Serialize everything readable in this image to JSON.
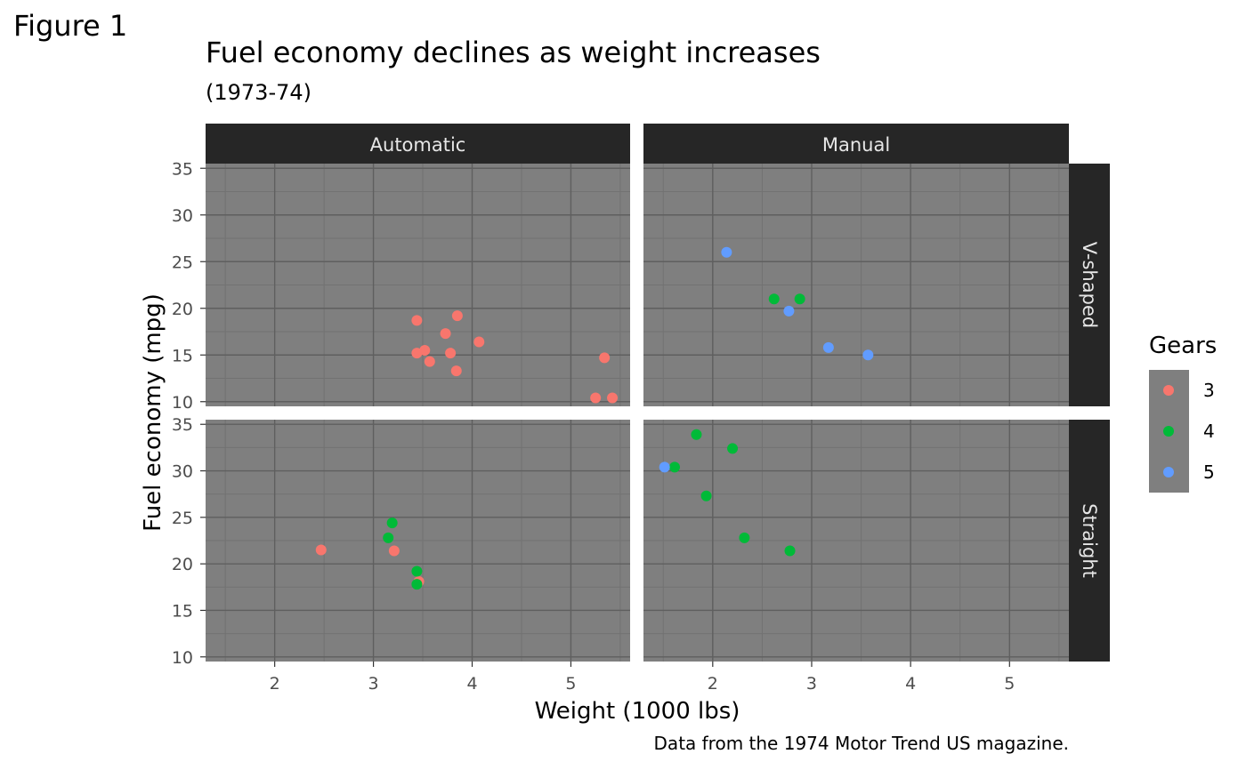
{
  "figure_label": "Figure 1",
  "caption": "Data from the 1974 Motor Trend US magazine.",
  "colors": {
    "panel_bg": "#7f7f7f",
    "grid_major": "#5f5f5f",
    "grid_minor": "#727272",
    "strip_bg": "#262626",
    "strip_text": "#e6e6e6",
    "tick_text": "#4d4d4d",
    "gear_3": "#f8766d",
    "gear_4": "#00ba38",
    "gear_5": "#619cff"
  },
  "chart_data": {
    "type": "scatter",
    "title": "Fuel economy declines as weight increases",
    "subtitle": "(1973-74)",
    "xlabel": "Weight (1000 lbs)",
    "ylabel": "Fuel economy (mpg)",
    "xlim": [
      1.3,
      5.6
    ],
    "ylim": [
      9.5,
      35.5
    ],
    "x_ticks": [
      "2",
      "3",
      "4",
      "5"
    ],
    "x_tick_values": [
      2,
      3,
      4,
      5
    ],
    "y_ticks": [
      "10",
      "15",
      "20",
      "25",
      "30",
      "35"
    ],
    "y_tick_values": [
      10,
      15,
      20,
      25,
      30,
      35
    ],
    "grid": true,
    "facet_columns": [
      "Automatic",
      "Manual"
    ],
    "facet_rows": [
      "V-shaped",
      "Straight"
    ],
    "legend": {
      "title": "Gears",
      "position": "right",
      "entries": [
        {
          "label": "3",
          "color": "#f8766d"
        },
        {
          "label": "4",
          "color": "#00ba38"
        },
        {
          "label": "5",
          "color": "#619cff"
        }
      ]
    },
    "points": [
      {
        "column": "Automatic",
        "row": "V-shaped",
        "gear": "3",
        "x": 3.44,
        "y": 18.7
      },
      {
        "column": "Automatic",
        "row": "V-shaped",
        "gear": "3",
        "x": 3.57,
        "y": 14.3
      },
      {
        "column": "Automatic",
        "row": "V-shaped",
        "gear": "3",
        "x": 4.07,
        "y": 16.4
      },
      {
        "column": "Automatic",
        "row": "V-shaped",
        "gear": "3",
        "x": 3.73,
        "y": 17.3
      },
      {
        "column": "Automatic",
        "row": "V-shaped",
        "gear": "3",
        "x": 3.78,
        "y": 15.2
      },
      {
        "column": "Automatic",
        "row": "V-shaped",
        "gear": "3",
        "x": 5.25,
        "y": 10.4
      },
      {
        "column": "Automatic",
        "row": "V-shaped",
        "gear": "3",
        "x": 5.42,
        "y": 10.4
      },
      {
        "column": "Automatic",
        "row": "V-shaped",
        "gear": "3",
        "x": 5.34,
        "y": 14.7
      },
      {
        "column": "Automatic",
        "row": "V-shaped",
        "gear": "3",
        "x": 3.52,
        "y": 15.5
      },
      {
        "column": "Automatic",
        "row": "V-shaped",
        "gear": "3",
        "x": 3.44,
        "y": 15.2
      },
      {
        "column": "Automatic",
        "row": "V-shaped",
        "gear": "3",
        "x": 3.84,
        "y": 13.3
      },
      {
        "column": "Automatic",
        "row": "V-shaped",
        "gear": "3",
        "x": 3.85,
        "y": 19.2
      },
      {
        "column": "Manual",
        "row": "V-shaped",
        "gear": "4",
        "x": 2.62,
        "y": 21.0
      },
      {
        "column": "Manual",
        "row": "V-shaped",
        "gear": "4",
        "x": 2.88,
        "y": 21.0
      },
      {
        "column": "Manual",
        "row": "V-shaped",
        "gear": "5",
        "x": 2.14,
        "y": 26.0
      },
      {
        "column": "Manual",
        "row": "V-shaped",
        "gear": "5",
        "x": 3.17,
        "y": 15.8
      },
      {
        "column": "Manual",
        "row": "V-shaped",
        "gear": "5",
        "x": 2.77,
        "y": 19.7
      },
      {
        "column": "Manual",
        "row": "V-shaped",
        "gear": "5",
        "x": 3.57,
        "y": 15.0
      },
      {
        "column": "Automatic",
        "row": "Straight",
        "gear": "3",
        "x": 3.21,
        "y": 21.4
      },
      {
        "column": "Automatic",
        "row": "Straight",
        "gear": "3",
        "x": 3.46,
        "y": 18.1
      },
      {
        "column": "Automatic",
        "row": "Straight",
        "gear": "3",
        "x": 2.47,
        "y": 21.5
      },
      {
        "column": "Automatic",
        "row": "Straight",
        "gear": "4",
        "x": 3.19,
        "y": 24.4
      },
      {
        "column": "Automatic",
        "row": "Straight",
        "gear": "4",
        "x": 3.15,
        "y": 22.8
      },
      {
        "column": "Automatic",
        "row": "Straight",
        "gear": "4",
        "x": 3.44,
        "y": 19.2
      },
      {
        "column": "Automatic",
        "row": "Straight",
        "gear": "4",
        "x": 3.44,
        "y": 17.8
      },
      {
        "column": "Manual",
        "row": "Straight",
        "gear": "4",
        "x": 2.32,
        "y": 22.8
      },
      {
        "column": "Manual",
        "row": "Straight",
        "gear": "4",
        "x": 2.2,
        "y": 32.4
      },
      {
        "column": "Manual",
        "row": "Straight",
        "gear": "4",
        "x": 1.615,
        "y": 30.4
      },
      {
        "column": "Manual",
        "row": "Straight",
        "gear": "4",
        "x": 1.835,
        "y": 33.9
      },
      {
        "column": "Manual",
        "row": "Straight",
        "gear": "4",
        "x": 1.935,
        "y": 27.3
      },
      {
        "column": "Manual",
        "row": "Straight",
        "gear": "4",
        "x": 2.78,
        "y": 21.4
      },
      {
        "column": "Manual",
        "row": "Straight",
        "gear": "5",
        "x": 1.513,
        "y": 30.4
      }
    ]
  }
}
